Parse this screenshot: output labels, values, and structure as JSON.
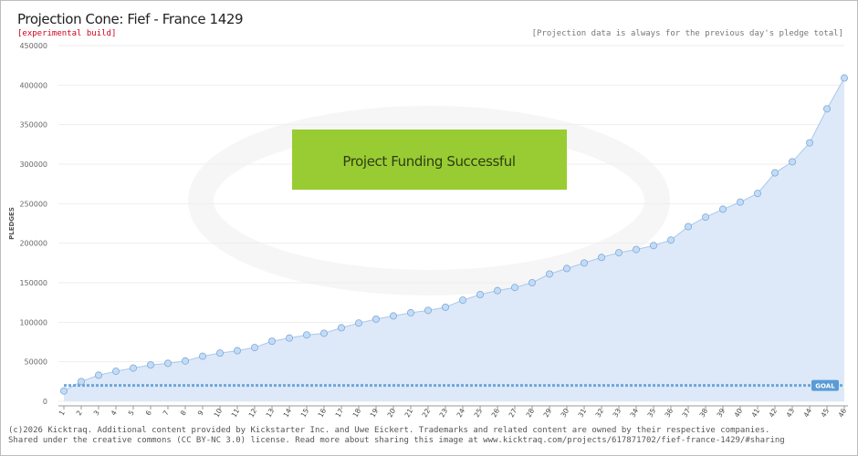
{
  "header": {
    "title": "Projection Cone: Fief - France 1429",
    "subtitle": "[experimental build]",
    "note": "[Projection data is always for the previous day's pledge total]"
  },
  "banner": {
    "text": "Project Funding Successful",
    "color": "#99cc33"
  },
  "goal": {
    "label": "GOAL",
    "value": 20000,
    "color": "#5b9bd5"
  },
  "footer": {
    "line1": "(c)2026 Kicktraq. Additional content provided by Kickstarter Inc. and Uwe Eickert. Trademarks and related content are owned by their respective companies.",
    "line2": "Shared under the creative commons (CC BY-NC 3.0) license. Read more about sharing this image at www.kicktraq.com/projects/617871702/fief-france-1429/#sharing"
  },
  "colors": {
    "line": "#a9c8ec",
    "fill": "#dde9f8",
    "point": "#c3dcf6",
    "point_stroke": "#7fa9d9",
    "grid": "#eeeeee"
  },
  "chart_data": {
    "type": "line",
    "ylabel": "PLEDGES",
    "xlabel": "",
    "ylim": [
      0,
      450000
    ],
    "yticks": [
      0,
      50000,
      100000,
      150000,
      200000,
      250000,
      300000,
      350000,
      400000,
      450000
    ],
    "x": [
      1,
      2,
      3,
      4,
      5,
      6,
      7,
      8,
      9,
      10,
      11,
      12,
      13,
      14,
      15,
      16,
      17,
      18,
      19,
      20,
      21,
      22,
      23,
      24,
      25,
      26,
      27,
      28,
      29,
      30,
      31,
      32,
      33,
      34,
      35,
      36,
      37,
      38,
      39,
      40,
      41,
      42,
      43,
      44,
      45,
      46
    ],
    "series": [
      {
        "values": [
          13000,
          25000,
          33000,
          38000,
          42000,
          46000,
          48000,
          51000,
          57000,
          61000,
          64000,
          68000,
          76000,
          80000,
          84000,
          86000,
          93000,
          99000,
          104000,
          108000,
          112000,
          115000,
          119000,
          128000,
          135000,
          140000,
          144000,
          150000,
          161000,
          168000,
          175000,
          182000,
          188000,
          192000,
          197000,
          204000,
          221000,
          233000,
          243000,
          252000,
          263000,
          289000,
          303000,
          327000,
          370000,
          409000
        ]
      }
    ]
  }
}
